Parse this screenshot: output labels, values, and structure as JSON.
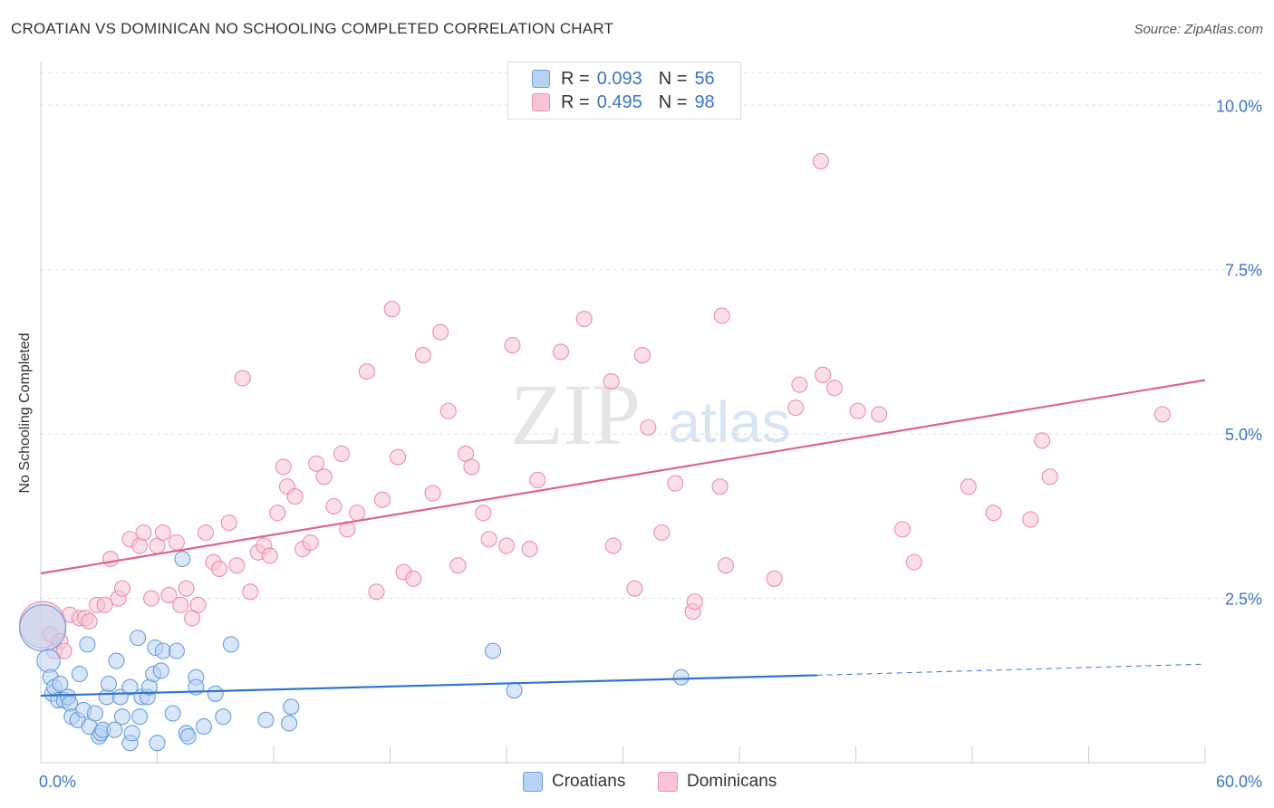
{
  "title": "CROATIAN VS DOMINICAN NO SCHOOLING COMPLETED CORRELATION CHART",
  "source": "Source: ZipAtlas.com",
  "watermark": {
    "zip": "ZIP",
    "atlas": "atlas"
  },
  "colors": {
    "croatian_fill": "#b8d2f2",
    "croatian_stroke": "#6a9edc",
    "croatian_line": "#2f74d0",
    "dominican_fill": "#f8c4d4",
    "dominican_stroke": "#eb8eab",
    "dominican_line": "#e0628e",
    "axis_text": "#3a74c6",
    "grid": "#dddddd"
  },
  "legend": {
    "rows": [
      {
        "r_label": "R =",
        "r_value": "0.093",
        "n_label": "N =",
        "n_value": "56"
      },
      {
        "r_label": "R =",
        "r_value": "0.495",
        "n_label": "N =",
        "n_value": "98"
      }
    ]
  },
  "bottom_legend": {
    "croatians": "Croatians",
    "dominicans": "Dominicans"
  },
  "chart_data": {
    "type": "scatter",
    "title": "CROATIAN VS DOMINICAN NO SCHOOLING COMPLETED CORRELATION CHART",
    "xlabel": "",
    "ylabel": "No Schooling Completed",
    "xlim": [
      0,
      60
    ],
    "ylim": [
      0,
      10.5
    ],
    "x_tick_labels": [
      "0.0%",
      "60.0%"
    ],
    "y_ticks": [
      2.5,
      5.0,
      7.5,
      10.0
    ],
    "y_tick_labels": [
      "2.5%",
      "5.0%",
      "7.5%",
      "10.0%"
    ],
    "grid": true,
    "series": [
      {
        "name": "Croatians",
        "R": 0.093,
        "N": 56,
        "trend": {
          "x0": 0,
          "y0": 1.02,
          "x1": 40,
          "y1": 1.33,
          "dash_x1": 60,
          "dash_y1": 1.5
        },
        "points": [
          [
            0.1,
            2.05,
            3
          ],
          [
            0.4,
            1.55,
            1.5
          ],
          [
            0.5,
            1.3,
            1
          ],
          [
            0.6,
            1.05,
            1
          ],
          [
            0.7,
            1.15,
            1
          ],
          [
            0.9,
            0.95,
            1
          ],
          [
            1.0,
            1.2,
            1
          ],
          [
            1.2,
            0.95,
            1
          ],
          [
            1.4,
            1.0,
            1
          ],
          [
            1.5,
            0.9,
            1
          ],
          [
            1.6,
            0.7,
            1
          ],
          [
            1.9,
            0.65,
            1
          ],
          [
            2.0,
            1.35,
            1
          ],
          [
            2.2,
            0.8,
            1
          ],
          [
            2.4,
            1.8,
            1
          ],
          [
            2.5,
            0.55,
            1
          ],
          [
            2.8,
            0.75,
            1
          ],
          [
            3.0,
            0.4,
            1
          ],
          [
            3.1,
            0.45,
            1
          ],
          [
            3.2,
            0.5,
            1
          ],
          [
            3.4,
            1.0,
            1
          ],
          [
            3.5,
            1.2,
            1
          ],
          [
            3.8,
            0.5,
            1
          ],
          [
            3.9,
            1.55,
            1
          ],
          [
            4.1,
            1.0,
            1
          ],
          [
            4.2,
            0.7,
            1
          ],
          [
            4.6,
            0.3,
            1
          ],
          [
            4.6,
            1.15,
            1
          ],
          [
            4.7,
            0.45,
            1
          ],
          [
            5.0,
            1.9,
            1
          ],
          [
            5.1,
            0.7,
            1
          ],
          [
            5.2,
            1.0,
            1
          ],
          [
            5.5,
            1.0,
            1
          ],
          [
            5.6,
            1.15,
            1
          ],
          [
            5.8,
            1.35,
            1
          ],
          [
            5.9,
            1.75,
            1
          ],
          [
            6.0,
            0.3,
            1
          ],
          [
            6.2,
            1.4,
            1
          ],
          [
            6.3,
            1.7,
            1
          ],
          [
            6.8,
            0.75,
            1
          ],
          [
            7.0,
            1.7,
            1
          ],
          [
            7.3,
            3.1,
            1
          ],
          [
            7.5,
            0.45,
            1
          ],
          [
            7.6,
            0.4,
            1
          ],
          [
            8.0,
            1.3,
            1
          ],
          [
            8.0,
            1.15,
            1
          ],
          [
            8.4,
            0.55,
            1
          ],
          [
            9.0,
            1.05,
            1
          ],
          [
            9.4,
            0.7,
            1
          ],
          [
            9.8,
            1.8,
            1
          ],
          [
            11.6,
            0.65,
            1
          ],
          [
            12.8,
            0.6,
            1
          ],
          [
            12.9,
            0.85,
            1
          ],
          [
            23.3,
            1.7,
            1
          ],
          [
            24.4,
            1.1,
            1
          ],
          [
            33.0,
            1.3,
            1
          ]
        ]
      },
      {
        "name": "Dominicans",
        "R": 0.495,
        "N": 98,
        "trend": {
          "x0": 0,
          "y0": 2.88,
          "x1": 60,
          "y1": 5.82
        },
        "points": [
          [
            0.1,
            2.1,
            3
          ],
          [
            0.5,
            1.95,
            1
          ],
          [
            0.7,
            1.7,
            1
          ],
          [
            1.0,
            1.85,
            1
          ],
          [
            1.2,
            1.7,
            1
          ],
          [
            1.5,
            2.25,
            1
          ],
          [
            2.0,
            2.2,
            1
          ],
          [
            2.3,
            2.2,
            1
          ],
          [
            2.5,
            2.15,
            1
          ],
          [
            2.9,
            2.4,
            1
          ],
          [
            3.3,
            2.4,
            1
          ],
          [
            3.6,
            3.1,
            1
          ],
          [
            4.0,
            2.5,
            1
          ],
          [
            4.2,
            2.65,
            1
          ],
          [
            4.6,
            3.4,
            1
          ],
          [
            5.1,
            3.3,
            1
          ],
          [
            5.3,
            3.5,
            1
          ],
          [
            5.7,
            2.5,
            1
          ],
          [
            6.0,
            3.3,
            1
          ],
          [
            6.3,
            3.5,
            1
          ],
          [
            6.6,
            2.55,
            1
          ],
          [
            7.0,
            3.35,
            1
          ],
          [
            7.2,
            2.4,
            1
          ],
          [
            7.5,
            2.65,
            1
          ],
          [
            7.8,
            2.2,
            1
          ],
          [
            8.1,
            2.4,
            1
          ],
          [
            8.5,
            3.5,
            1
          ],
          [
            8.9,
            3.05,
            1
          ],
          [
            9.2,
            2.95,
            1
          ],
          [
            9.7,
            3.65,
            1
          ],
          [
            10.1,
            3.0,
            1
          ],
          [
            10.4,
            5.85,
            1
          ],
          [
            10.8,
            2.6,
            1
          ],
          [
            11.2,
            3.2,
            1
          ],
          [
            11.5,
            3.3,
            1
          ],
          [
            11.8,
            3.15,
            1
          ],
          [
            12.2,
            3.8,
            1
          ],
          [
            12.5,
            4.5,
            1
          ],
          [
            12.7,
            4.2,
            1
          ],
          [
            13.1,
            4.05,
            1
          ],
          [
            13.5,
            3.25,
            1
          ],
          [
            13.9,
            3.35,
            1
          ],
          [
            14.2,
            4.55,
            1
          ],
          [
            14.6,
            4.35,
            1
          ],
          [
            15.1,
            3.9,
            1
          ],
          [
            15.5,
            4.7,
            1
          ],
          [
            15.8,
            3.55,
            1
          ],
          [
            16.3,
            3.8,
            1
          ],
          [
            16.8,
            5.95,
            1
          ],
          [
            17.3,
            2.6,
            1
          ],
          [
            17.6,
            4.0,
            1
          ],
          [
            18.1,
            6.9,
            1
          ],
          [
            18.4,
            4.65,
            1
          ],
          [
            18.7,
            2.9,
            1
          ],
          [
            19.2,
            2.8,
            1
          ],
          [
            19.7,
            6.2,
            1
          ],
          [
            20.2,
            4.1,
            1
          ],
          [
            20.6,
            6.55,
            1
          ],
          [
            21.0,
            5.35,
            1
          ],
          [
            21.5,
            3.0,
            1
          ],
          [
            21.9,
            4.7,
            1
          ],
          [
            22.2,
            4.5,
            1
          ],
          [
            22.8,
            3.8,
            1
          ],
          [
            23.1,
            3.4,
            1
          ],
          [
            24.0,
            3.3,
            1
          ],
          [
            24.3,
            6.35,
            1
          ],
          [
            25.2,
            3.25,
            1
          ],
          [
            25.6,
            4.3,
            1
          ],
          [
            26.8,
            6.25,
            1
          ],
          [
            28.0,
            6.75,
            1
          ],
          [
            29.4,
            5.8,
            1
          ],
          [
            29.5,
            3.3,
            1
          ],
          [
            30.6,
            2.65,
            1
          ],
          [
            31.0,
            6.2,
            1
          ],
          [
            31.3,
            5.1,
            1
          ],
          [
            32.0,
            3.5,
            1
          ],
          [
            32.7,
            4.25,
            1
          ],
          [
            33.6,
            2.3,
            1
          ],
          [
            33.7,
            2.45,
            1
          ],
          [
            35.0,
            4.2,
            1
          ],
          [
            35.1,
            6.8,
            1
          ],
          [
            35.3,
            3.0,
            1
          ],
          [
            37.8,
            2.8,
            1
          ],
          [
            38.9,
            5.4,
            1
          ],
          [
            39.1,
            5.75,
            1
          ],
          [
            40.2,
            9.15,
            1
          ],
          [
            40.3,
            5.9,
            1
          ],
          [
            40.9,
            5.7,
            1
          ],
          [
            42.1,
            5.35,
            1
          ],
          [
            43.2,
            5.3,
            1
          ],
          [
            44.4,
            3.55,
            1
          ],
          [
            45.0,
            3.05,
            1
          ],
          [
            47.8,
            4.2,
            1
          ],
          [
            49.1,
            3.8,
            1
          ],
          [
            51.0,
            3.7,
            1
          ],
          [
            51.6,
            4.9,
            1
          ],
          [
            52.0,
            4.35,
            1
          ],
          [
            57.8,
            5.3,
            1
          ]
        ]
      }
    ]
  }
}
